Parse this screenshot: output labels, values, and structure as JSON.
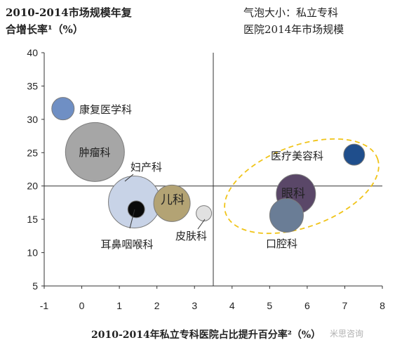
{
  "title_left": [
    "2010-2014市场规模年复",
    "合增长率¹（%）"
  ],
  "title_right": [
    "气泡大小：私立专科",
    "医院2014年市场规模"
  ],
  "xlabel": "2010-2014年私立专科医院占比提升百分率²（%）",
  "watermark": "米思咨询",
  "chart_data": {
    "type": "bubble",
    "xlim": [
      -1,
      8
    ],
    "ylim": [
      5,
      40
    ],
    "x_ticks": [
      -1,
      0,
      1,
      2,
      3,
      4,
      5,
      6,
      7,
      8
    ],
    "y_ticks": [
      5,
      10,
      15,
      20,
      25,
      30,
      35,
      40
    ],
    "reference_lines": {
      "x": 3.5,
      "y": 20
    },
    "bubbles": [
      {
        "label": "康复医学科",
        "x": -0.5,
        "y": 31.6,
        "r": 16,
        "color": "#6f8fc4"
      },
      {
        "label": "肿瘤科",
        "x": 0.35,
        "y": 25.1,
        "r": 42,
        "color": "#a6a6a6"
      },
      {
        "label": "妇产科",
        "x": 1.4,
        "y": 17.6,
        "r": 37,
        "color": "#c8d3e7"
      },
      {
        "label": "耳鼻咽喉科",
        "x": 1.45,
        "y": 16.5,
        "r": 12,
        "color": "#0a0a0a"
      },
      {
        "label": "儿科",
        "x": 2.4,
        "y": 17.4,
        "r": 26,
        "color": "#b3a374"
      },
      {
        "label": "皮肤科",
        "x": 3.25,
        "y": 15.9,
        "r": 11,
        "color": "#e1e1e1"
      },
      {
        "label": "医疗美容科",
        "x": 7.25,
        "y": 24.7,
        "r": 15,
        "color": "#1f4e8c"
      },
      {
        "label": "眼科",
        "x": 5.7,
        "y": 18.8,
        "r": 28,
        "color": "#5a4768"
      },
      {
        "label": "口腔科",
        "x": 5.45,
        "y": 15.6,
        "r": 24,
        "color": "#6a7d96"
      }
    ]
  }
}
